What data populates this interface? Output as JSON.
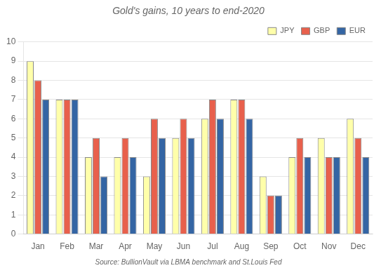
{
  "chart_data": {
    "type": "bar",
    "title": "Gold's gains, 10 years to end-2020",
    "categories": [
      "Jan",
      "Feb",
      "Mar",
      "Apr",
      "May",
      "Jun",
      "Jul",
      "Aug",
      "Sep",
      "Oct",
      "Nov",
      "Dec"
    ],
    "series": [
      {
        "name": "JPY",
        "color": "#FFFFAA",
        "values": [
          9,
          7,
          4,
          4,
          3,
          5,
          6,
          7,
          3,
          4,
          5,
          6
        ]
      },
      {
        "name": "GBP",
        "color": "#E8604C",
        "values": [
          8,
          7,
          5,
          5,
          6,
          6,
          7,
          7,
          2,
          5,
          4,
          5
        ]
      },
      {
        "name": "EUR",
        "color": "#3465A4",
        "values": [
          7,
          7,
          3,
          4,
          5,
          5,
          6,
          6,
          2,
          4,
          4,
          4
        ]
      }
    ],
    "ylim": [
      0,
      10
    ],
    "yticks": [
      0,
      1,
      2,
      3,
      4,
      5,
      6,
      7,
      8,
      9,
      10
    ],
    "grid": "y",
    "legend": "upper right",
    "annotations": [
      "Source: BullionVault via LBMA benchmark and St.Louis Fed"
    ]
  }
}
